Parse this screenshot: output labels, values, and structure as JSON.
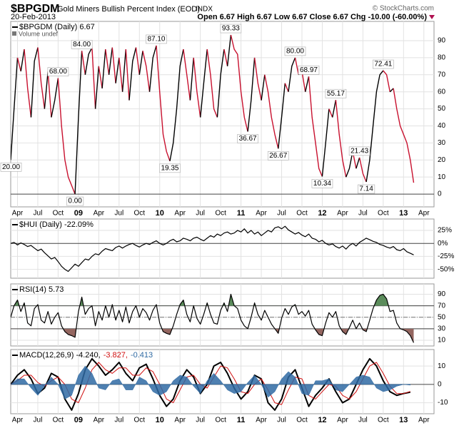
{
  "header": {
    "symbol": "$BPGDM",
    "name": "Gold Miners Bullish Percent Index (EOD)",
    "exchange": "INDX",
    "date": "20-Feb-2013",
    "quote": "Open 6.67 High 6.67 Low 6.67 Close 6.67 Chg -10.00 (-60.00%)",
    "copyright": "© StockCharts.com"
  },
  "chart_data": [
    {
      "type": "line",
      "subtitle": "Volume undef",
      "grid": true,
      "xlim": [
        0,
        125
      ],
      "xticks": [
        {
          "value": 2,
          "label": "Apr"
        },
        {
          "value": 8,
          "label": "Jul"
        },
        {
          "value": 14,
          "label": "Oct"
        },
        {
          "value": 20,
          "label": "09"
        },
        {
          "value": 26,
          "label": "Apr"
        },
        {
          "value": 32,
          "label": "Jul"
        },
        {
          "value": 38,
          "label": "Oct"
        },
        {
          "value": 44,
          "label": "10"
        },
        {
          "value": 50,
          "label": "Apr"
        },
        {
          "value": 56,
          "label": "Jul"
        },
        {
          "value": 62,
          "label": "Oct"
        },
        {
          "value": 68,
          "label": "11"
        },
        {
          "value": 74,
          "label": "Apr"
        },
        {
          "value": 80,
          "label": "Jul"
        },
        {
          "value": 86,
          "label": "Oct"
        },
        {
          "value": 92,
          "label": "12"
        },
        {
          "value": 98,
          "label": "Apr"
        },
        {
          "value": 104,
          "label": "Jul"
        },
        {
          "value": 110,
          "label": "Oct"
        },
        {
          "value": 116,
          "label": "13"
        },
        {
          "value": 122,
          "label": "Apr"
        }
      ],
      "ylim": [
        -7.5,
        101.3
      ],
      "yticks": [
        0,
        10,
        20,
        30,
        40,
        50,
        60,
        70,
        80,
        90
      ],
      "series": [
        {
          "name": "$BPGDM (Daily) 6.67",
          "color": "#000000",
          "down_color": "#c8102e",
          "values": [
            20,
            50,
            80,
            72,
            85,
            62,
            45,
            78,
            86,
            65,
            50,
            72,
            45,
            55,
            68,
            40,
            20,
            10,
            5,
            0,
            45,
            84,
            70,
            82,
            86,
            50,
            75,
            62,
            85,
            70,
            86,
            65,
            80,
            60,
            85,
            55,
            78,
            86,
            70,
            84,
            75,
            60,
            80,
            87.1,
            60,
            35,
            25,
            19.35,
            30,
            50,
            75,
            85,
            70,
            55,
            80,
            60,
            45,
            65,
            85,
            70,
            50,
            45,
            70,
            85,
            75,
            93.33,
            85,
            82,
            60,
            45,
            36.67,
            55,
            80,
            65,
            55,
            70,
            60,
            45,
            35,
            26.67,
            45,
            65,
            60,
            75,
            80,
            70,
            72,
            60,
            68.97,
            45,
            30,
            15,
            10.34,
            30,
            50,
            45,
            55.17,
            35,
            20,
            10,
            15,
            25,
            15,
            21.43,
            12,
            7.14,
            20,
            40,
            60,
            70,
            72.41,
            70,
            60,
            62,
            50,
            40,
            35,
            30,
            20,
            6.67
          ],
          "value_labels": [
            "20.00",
            null,
            null,
            null,
            null,
            null,
            null,
            null,
            null,
            null,
            null,
            null,
            null,
            null,
            "68.00",
            null,
            null,
            null,
            null,
            "0.00",
            null,
            "84.00",
            null,
            null,
            null,
            null,
            null,
            null,
            null,
            null,
            null,
            null,
            null,
            null,
            null,
            null,
            null,
            null,
            null,
            null,
            null,
            null,
            null,
            "87.10",
            null,
            null,
            null,
            "19.35",
            null,
            null,
            null,
            null,
            null,
            null,
            null,
            null,
            null,
            null,
            null,
            null,
            null,
            null,
            null,
            null,
            null,
            "93.33",
            null,
            null,
            null,
            null,
            "36.67",
            null,
            null,
            null,
            null,
            null,
            null,
            null,
            null,
            "26.67",
            null,
            null,
            null,
            null,
            "80.00",
            null,
            null,
            null,
            "68.97",
            null,
            null,
            null,
            "10.34",
            null,
            null,
            null,
            "55.17",
            null,
            null,
            null,
            null,
            null,
            null,
            "21.43",
            null,
            "7.14",
            null,
            null,
            null,
            null,
            "72.41",
            null,
            null,
            null,
            null,
            null,
            null,
            null,
            null,
            null
          ]
        }
      ]
    },
    {
      "type": "line",
      "grid": true,
      "xlim": [
        0,
        125
      ],
      "ylim": [
        -67,
        47
      ],
      "yticks": [
        {
          "value": 25,
          "label": "25%"
        },
        {
          "value": 0,
          "label": "0%"
        },
        {
          "value": -25,
          "label": "-25%"
        },
        {
          "value": -50,
          "label": "-50%"
        }
      ],
      "series": [
        {
          "name": "$HUI (Daily) -22.09%",
          "color": "#000000",
          "values": [
            0,
            2,
            -3,
            1,
            -2,
            -6,
            -4,
            -9,
            -14,
            -11,
            -18,
            -24,
            -30,
            -27,
            -35,
            -44,
            -50,
            -54,
            -47,
            -40,
            -44,
            -37,
            -30,
            -32,
            -25,
            -20,
            -22,
            -15,
            -10,
            -12,
            -14,
            -8,
            -5,
            -9,
            -5,
            -2,
            0,
            -4,
            -7,
            -3,
            0,
            -2,
            2,
            5,
            0,
            -3,
            0,
            5,
            8,
            3,
            5,
            10,
            8,
            5,
            10,
            12,
            8,
            5,
            10,
            15,
            12,
            18,
            15,
            20,
            22,
            18,
            20,
            25,
            22,
            28,
            20,
            25,
            18,
            22,
            15,
            20,
            25,
            22,
            30,
            32,
            28,
            33,
            26,
            22,
            18,
            21,
            16,
            13,
            18,
            10,
            8,
            3,
            6,
            0,
            -3,
            -1,
            -6,
            -9,
            -5,
            -11,
            -4,
            0,
            -5,
            2,
            6,
            10,
            7,
            4,
            2,
            -2,
            -4,
            -7,
            -9,
            -6,
            -12,
            -14,
            -10,
            -16,
            -19,
            -22.09
          ]
        }
      ]
    },
    {
      "type": "line",
      "grid": true,
      "xlim": [
        0,
        125
      ],
      "ylim": [
        0,
        108
      ],
      "yticks": [
        90,
        70,
        50,
        30,
        10
      ],
      "bands": [
        30,
        70
      ],
      "above_color": "#5b8c5b",
      "below_color": "#946660",
      "series": [
        {
          "name": "RSI(14) 5.73",
          "color": "#000000",
          "values": [
            50,
            70,
            80,
            60,
            75,
            40,
            35,
            65,
            72,
            45,
            40,
            60,
            38,
            50,
            58,
            35,
            25,
            20,
            18,
            15,
            60,
            85,
            55,
            65,
            70,
            35,
            60,
            45,
            70,
            50,
            72,
            45,
            62,
            42,
            68,
            40,
            60,
            70,
            50,
            65,
            58,
            45,
            62,
            72,
            40,
            25,
            22,
            20,
            35,
            55,
            72,
            80,
            55,
            42,
            70,
            48,
            38,
            55,
            75,
            55,
            40,
            38,
            62,
            75,
            60,
            90,
            70,
            65,
            45,
            35,
            30,
            50,
            75,
            55,
            45,
            62,
            50,
            38,
            30,
            22,
            48,
            65,
            55,
            68,
            72,
            55,
            60,
            52,
            62,
            38,
            28,
            20,
            18,
            40,
            58,
            50,
            60,
            35,
            25,
            20,
            32,
            45,
            30,
            40,
            28,
            25,
            45,
            65,
            80,
            88,
            90,
            82,
            60,
            62,
            40,
            30,
            28,
            25,
            18,
            5.73
          ]
        }
      ]
    },
    {
      "type": "line",
      "grid": true,
      "xlim": [
        0,
        62.5
      ],
      "ylim": [
        -16,
        19
      ],
      "yticks": [
        10,
        0,
        -10
      ],
      "xticks": [
        {
          "value": 1,
          "label": "Apr"
        },
        {
          "value": 4,
          "label": "Jul"
        },
        {
          "value": 7,
          "label": "Oct"
        },
        {
          "value": 10,
          "label": "09"
        },
        {
          "value": 13,
          "label": "Apr"
        },
        {
          "value": 16,
          "label": "Jul"
        },
        {
          "value": 19,
          "label": "Oct"
        },
        {
          "value": 22,
          "label": "10"
        },
        {
          "value": 25,
          "label": "Apr"
        },
        {
          "value": 28,
          "label": "Jul"
        },
        {
          "value": 31,
          "label": "Oct"
        },
        {
          "value": 34,
          "label": "11"
        },
        {
          "value": 37,
          "label": "Apr"
        },
        {
          "value": 40,
          "label": "Jul"
        },
        {
          "value": 43,
          "label": "Oct"
        },
        {
          "value": 46,
          "label": "12"
        },
        {
          "value": 49,
          "label": "Apr"
        },
        {
          "value": 52,
          "label": "Jul"
        },
        {
          "value": 55,
          "label": "Oct"
        },
        {
          "value": 58,
          "label": "13"
        },
        {
          "value": 61,
          "label": "Apr"
        }
      ],
      "series": [
        {
          "name": "MACD(12,26,9) -4.240,",
          "color": "#000000",
          "width": 2,
          "values": [
            0,
            5,
            8,
            3,
            -5,
            -2,
            6,
            4,
            -8,
            -14,
            -5,
            8,
            14,
            10,
            5,
            8,
            12,
            6,
            2,
            9,
            11,
            3,
            -6,
            -12,
            -8,
            2,
            8,
            4,
            -5,
            0,
            10,
            12,
            6,
            -2,
            -8,
            -4,
            5,
            3,
            -10,
            -14,
            -8,
            4,
            8,
            -2,
            -12,
            -6,
            -2,
            3,
            -4,
            -10,
            -8,
            0,
            8,
            14,
            10,
            2,
            -4,
            -6,
            -5,
            -4.24
          ]
        },
        {
          "name": "-3.827,",
          "color": "#d01010",
          "width": 1,
          "values": [
            0,
            2,
            5,
            5,
            1,
            -1,
            2,
            4,
            0,
            -8,
            -10,
            -2,
            8,
            12,
            8,
            6,
            9,
            9,
            5,
            5,
            9,
            7,
            0,
            -8,
            -10,
            -3,
            4,
            5,
            0,
            -2,
            4,
            10,
            9,
            3,
            -4,
            -5,
            0,
            3,
            -3,
            -10,
            -11,
            -3,
            4,
            3,
            -6,
            -8,
            -4,
            0,
            -1,
            -6,
            -8,
            -4,
            3,
            10,
            12,
            6,
            -1,
            -5,
            -5,
            -3.827
          ]
        },
        {
          "name": "-0.413",
          "color": "#2f6aa3",
          "kind": "area",
          "values": [
            0,
            3,
            3,
            -2,
            -6,
            -1,
            4,
            0,
            -8,
            -6,
            5,
            10,
            6,
            -2,
            -3,
            2,
            3,
            -3,
            -3,
            4,
            2,
            -4,
            -6,
            -4,
            2,
            5,
            4,
            -1,
            -5,
            2,
            6,
            2,
            -3,
            -5,
            -4,
            1,
            5,
            0,
            -7,
            -4,
            3,
            7,
            4,
            -5,
            -6,
            2,
            2,
            3,
            -3,
            -4,
            0,
            4,
            5,
            4,
            -2,
            -4,
            -3,
            -1,
            0,
            -0.413
          ]
        }
      ]
    }
  ]
}
